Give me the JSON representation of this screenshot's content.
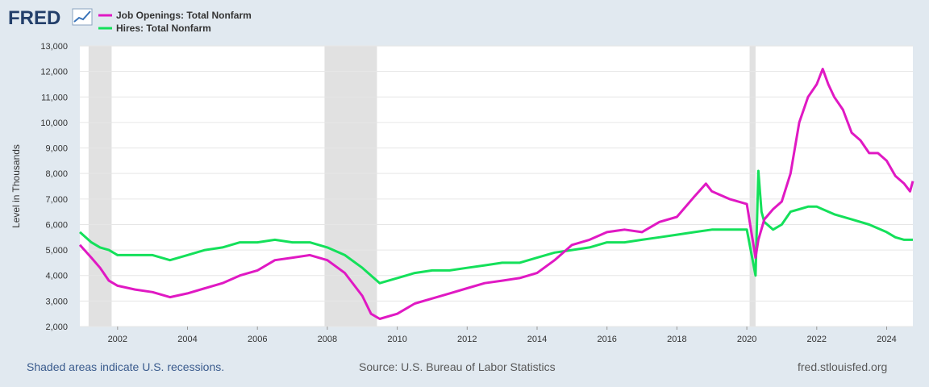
{
  "logo": {
    "text": "FRED",
    "icon": "fred-graph-logo-icon"
  },
  "colors": {
    "job_openings": "#e019c3",
    "hires": "#14e05a",
    "recession": "#e1e1e1",
    "grid": "#e6e6e6",
    "background": "#e1e9f0",
    "plot_bg": "#ffffff",
    "axis_text": "#333333"
  },
  "footer": {
    "note": "Shaded areas indicate U.S. recessions.",
    "source": "Source: U.S. Bureau of Labor Statistics",
    "site": "fred.stlouisfed.org"
  },
  "chart_data": {
    "type": "line",
    "title": "",
    "xlabel": "",
    "ylabel": "Level in Thousands",
    "xlim": [
      2000.92,
      2024.75
    ],
    "ylim": [
      2000,
      13000
    ],
    "yticks": [
      "2,000",
      "3,000",
      "4,000",
      "5,000",
      "6,000",
      "7,000",
      "8,000",
      "9,000",
      "10,000",
      "11,000",
      "12,000",
      "13,000"
    ],
    "ytick_values": [
      2000,
      3000,
      4000,
      5000,
      6000,
      7000,
      8000,
      9000,
      10000,
      11000,
      12000,
      13000
    ],
    "xticks": [
      "2002",
      "2004",
      "2006",
      "2008",
      "2010",
      "2012",
      "2014",
      "2016",
      "2018",
      "2020",
      "2022",
      "2024"
    ],
    "xtick_values": [
      2002,
      2004,
      2006,
      2008,
      2010,
      2012,
      2014,
      2016,
      2018,
      2020,
      2022,
      2024
    ],
    "recessions": [
      [
        2001.17,
        2001.83
      ],
      [
        2007.92,
        2009.42
      ],
      [
        2020.08,
        2020.25
      ]
    ],
    "legend": [
      "Job Openings: Total Nonfarm",
      "Hires: Total Nonfarm"
    ],
    "series": [
      {
        "name": "Job Openings: Total Nonfarm",
        "x": [
          2000.92,
          2001.25,
          2001.5,
          2001.75,
          2002.0,
          2002.5,
          2003.0,
          2003.5,
          2004.0,
          2004.5,
          2005.0,
          2005.5,
          2006.0,
          2006.5,
          2007.0,
          2007.5,
          2008.0,
          2008.5,
          2009.0,
          2009.25,
          2009.5,
          2010.0,
          2010.5,
          2011.0,
          2011.5,
          2012.0,
          2012.5,
          2013.0,
          2013.5,
          2014.0,
          2014.5,
          2015.0,
          2015.5,
          2016.0,
          2016.5,
          2017.0,
          2017.5,
          2018.0,
          2018.5,
          2018.83,
          2019.0,
          2019.5,
          2020.0,
          2020.25,
          2020.33,
          2020.5,
          2020.75,
          2021.0,
          2021.25,
          2021.5,
          2021.75,
          2022.0,
          2022.17,
          2022.33,
          2022.5,
          2022.75,
          2023.0,
          2023.25,
          2023.5,
          2023.75,
          2024.0,
          2024.25,
          2024.5,
          2024.67,
          2024.75
        ],
        "values": [
          5200,
          4700,
          4300,
          3800,
          3600,
          3450,
          3350,
          3150,
          3300,
          3500,
          3700,
          4000,
          4200,
          4600,
          4700,
          4800,
          4600,
          4100,
          3200,
          2500,
          2300,
          2500,
          2900,
          3100,
          3300,
          3500,
          3700,
          3800,
          3900,
          4100,
          4600,
          5200,
          5400,
          5700,
          5800,
          5700,
          6100,
          6300,
          7100,
          7600,
          7300,
          7000,
          6800,
          4700,
          5400,
          6200,
          6600,
          6900,
          8000,
          10000,
          11000,
          11500,
          12100,
          11500,
          11000,
          10500,
          9600,
          9300,
          8800,
          8800,
          8500,
          7900,
          7600,
          7300,
          7700
        ]
      },
      {
        "name": "Hires: Total Nonfarm",
        "x": [
          2000.92,
          2001.25,
          2001.5,
          2001.75,
          2002.0,
          2002.5,
          2003.0,
          2003.5,
          2004.0,
          2004.5,
          2005.0,
          2005.5,
          2006.0,
          2006.5,
          2007.0,
          2007.5,
          2008.0,
          2008.5,
          2009.0,
          2009.5,
          2010.0,
          2010.5,
          2011.0,
          2011.5,
          2012.0,
          2012.5,
          2013.0,
          2013.5,
          2014.0,
          2014.5,
          2015.0,
          2015.5,
          2016.0,
          2016.5,
          2017.0,
          2017.5,
          2018.0,
          2018.5,
          2019.0,
          2019.5,
          2020.0,
          2020.25,
          2020.33,
          2020.42,
          2020.5,
          2020.75,
          2021.0,
          2021.25,
          2021.5,
          2021.75,
          2022.0,
          2022.5,
          2023.0,
          2023.5,
          2024.0,
          2024.25,
          2024.5,
          2024.75
        ],
        "values": [
          5700,
          5300,
          5100,
          5000,
          4800,
          4800,
          4800,
          4600,
          4800,
          5000,
          5100,
          5300,
          5300,
          5400,
          5300,
          5300,
          5100,
          4800,
          4300,
          3700,
          3900,
          4100,
          4200,
          4200,
          4300,
          4400,
          4500,
          4500,
          4700,
          4900,
          5000,
          5100,
          5300,
          5300,
          5400,
          5500,
          5600,
          5700,
          5800,
          5800,
          5800,
          4000,
          8100,
          6500,
          6100,
          5800,
          6000,
          6500,
          6600,
          6700,
          6700,
          6400,
          6200,
          6000,
          5700,
          5500,
          5400,
          5400
        ]
      }
    ]
  }
}
